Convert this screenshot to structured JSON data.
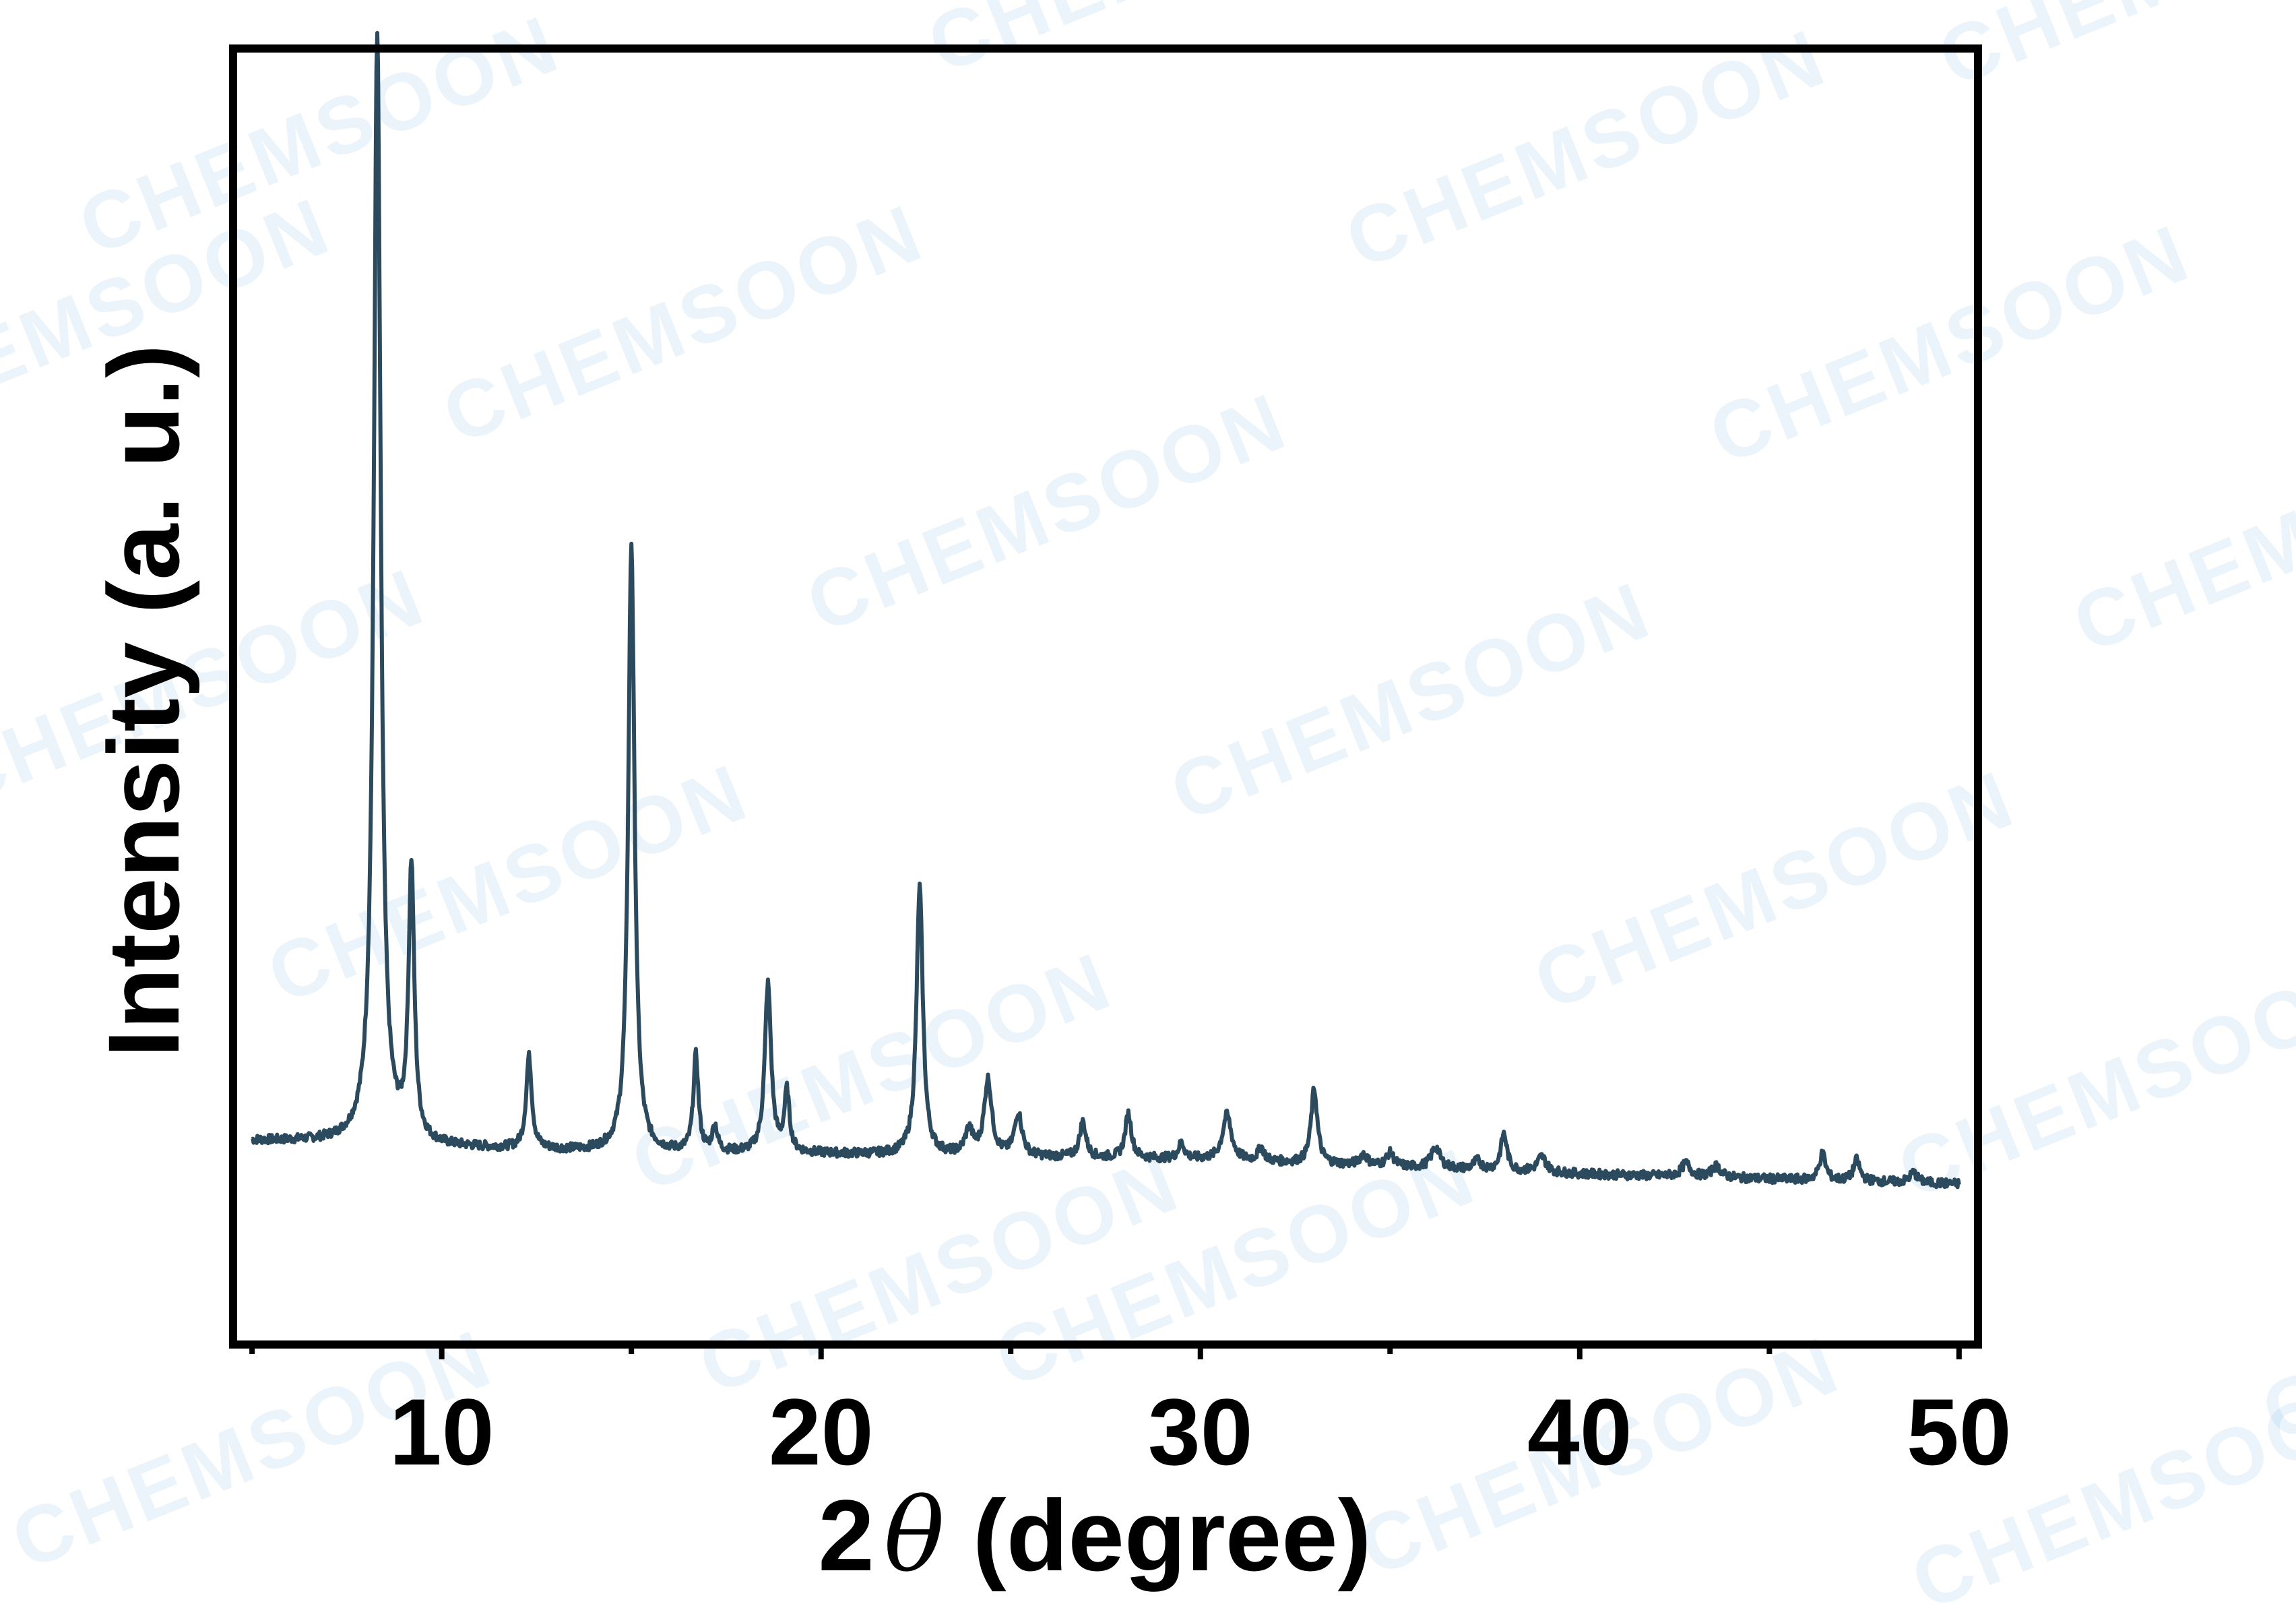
{
  "watermark": {
    "text": "CHEMSOON",
    "color": "#2a8fd8"
  },
  "chart_data": {
    "type": "line",
    "title": "",
    "xlabel_prefix": "2",
    "xlabel_symbol": "θ",
    "xlabel_suffix": " (degree)",
    "ylabel": "Intensity (a. u.)",
    "xlim": [
      4.5,
      50.5
    ],
    "ylim": [
      -0.09,
      1.08
    ],
    "xticks_major": [
      10,
      20,
      30,
      40,
      50
    ],
    "xticks_labels": [
      "10",
      "20",
      "30",
      "40",
      "50"
    ],
    "xticks_minor": [
      5,
      15,
      25,
      35,
      45
    ],
    "y_tick_labels_shown": false,
    "grid": false,
    "legend": "none",
    "line_color": "#2b4a5e",
    "frame_color": "#000000",
    "series": [
      {
        "x_range": [
          5.0,
          50.0
        ],
        "baseline": [
          [
            5.0,
            0.094
          ],
          [
            8.0,
            0.092
          ],
          [
            10.0,
            0.088
          ],
          [
            15.0,
            0.083
          ],
          [
            20.0,
            0.082
          ],
          [
            30.0,
            0.077
          ],
          [
            40.0,
            0.064
          ],
          [
            50.0,
            0.055
          ]
        ],
        "peaks": [
          {
            "x": 8.3,
            "y": 1.0,
            "w": 0.11
          },
          {
            "x": 9.2,
            "y": 0.245,
            "w": 0.09
          },
          {
            "x": 12.3,
            "y": 0.083,
            "w": 0.09
          },
          {
            "x": 15.0,
            "y": 0.55,
            "w": 0.1
          },
          {
            "x": 16.7,
            "y": 0.087,
            "w": 0.08
          },
          {
            "x": 17.2,
            "y": 0.023,
            "w": 0.08
          },
          {
            "x": 18.6,
            "y": 0.152,
            "w": 0.1
          },
          {
            "x": 19.1,
            "y": 0.054,
            "w": 0.08
          },
          {
            "x": 22.6,
            "y": 0.242,
            "w": 0.1
          },
          {
            "x": 23.9,
            "y": 0.022,
            "w": 0.12
          },
          {
            "x": 24.4,
            "y": 0.068,
            "w": 0.12
          },
          {
            "x": 25.2,
            "y": 0.038,
            "w": 0.12
          },
          {
            "x": 26.9,
            "y": 0.032,
            "w": 0.1
          },
          {
            "x": 28.1,
            "y": 0.04,
            "w": 0.1
          },
          {
            "x": 29.5,
            "y": 0.014,
            "w": 0.1
          },
          {
            "x": 30.7,
            "y": 0.041,
            "w": 0.14
          },
          {
            "x": 31.6,
            "y": 0.012,
            "w": 0.1
          },
          {
            "x": 33.0,
            "y": 0.067,
            "w": 0.1
          },
          {
            "x": 34.3,
            "y": 0.01,
            "w": 0.12
          },
          {
            "x": 35.0,
            "y": 0.012,
            "w": 0.12
          },
          {
            "x": 36.2,
            "y": 0.019,
            "w": 0.14
          },
          {
            "x": 37.3,
            "y": 0.008,
            "w": 0.12
          },
          {
            "x": 38.0,
            "y": 0.033,
            "w": 0.1
          },
          {
            "x": 39.0,
            "y": 0.014,
            "w": 0.14
          },
          {
            "x": 42.8,
            "y": 0.012,
            "w": 0.14
          },
          {
            "x": 43.6,
            "y": 0.01,
            "w": 0.14
          },
          {
            "x": 46.4,
            "y": 0.024,
            "w": 0.1
          },
          {
            "x": 47.3,
            "y": 0.019,
            "w": 0.1
          },
          {
            "x": 48.8,
            "y": 0.009,
            "w": 0.12
          }
        ]
      }
    ]
  }
}
